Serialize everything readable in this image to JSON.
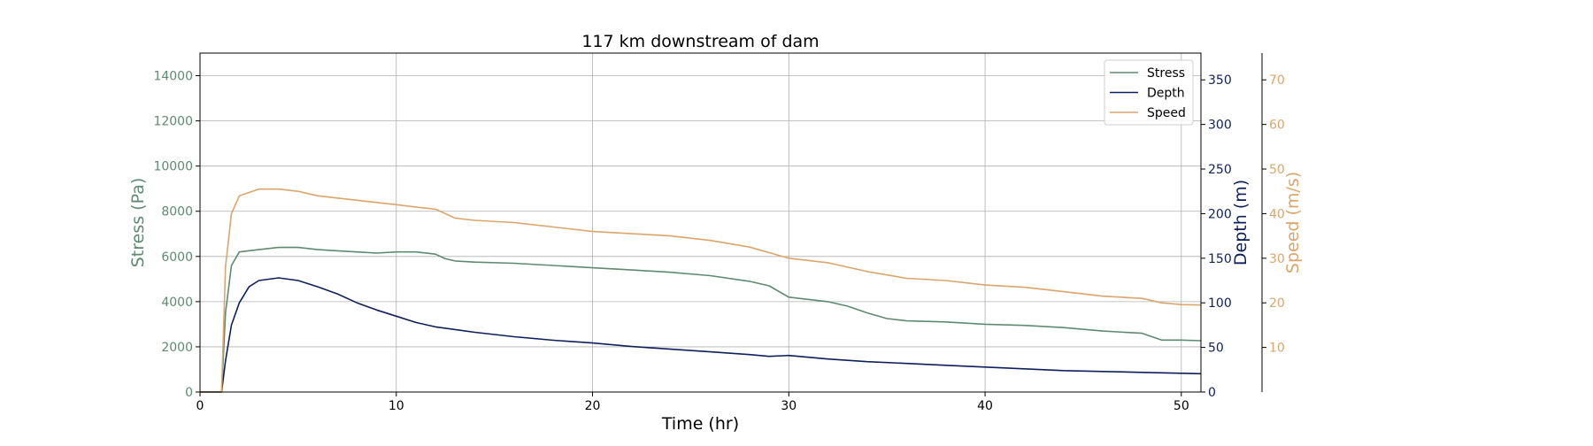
{
  "chart_data": {
    "type": "line",
    "title": "117 km downstream of dam",
    "xlabel": "Time (hr)",
    "xlim": [
      0,
      51
    ],
    "x_ticks": [
      0,
      10,
      20,
      30,
      40,
      50
    ],
    "grid": true,
    "legend_position": "top-right",
    "axes": {
      "stress": {
        "label": "Stress (Pa)",
        "color": "#5e8a72",
        "side": "left",
        "ylim": [
          0,
          15000
        ],
        "ticks": [
          0,
          2000,
          4000,
          6000,
          8000,
          10000,
          12000,
          14000
        ]
      },
      "depth": {
        "label": "Depth (m)",
        "color": "#0e1f5b",
        "side": "right",
        "ylim": [
          0,
          380
        ],
        "ticks": [
          0,
          50,
          100,
          150,
          200,
          250,
          300,
          350
        ]
      },
      "speed": {
        "label": "Speed (m/s)",
        "color": "#dba56b",
        "side": "right-outer",
        "ylim": [
          0,
          76
        ],
        "ticks": [
          10,
          20,
          30,
          40,
          50,
          60,
          70
        ]
      }
    },
    "series": [
      {
        "name": "Stress",
        "axis": "stress",
        "color": "#5e8a72",
        "x": [
          0,
          1.1,
          1.3,
          1.6,
          2,
          3,
          4,
          5,
          6,
          7,
          8,
          9,
          10,
          11,
          12,
          12.5,
          13,
          14,
          16,
          18,
          20,
          22,
          24,
          26,
          28,
          29,
          30,
          32,
          33,
          34,
          35,
          36,
          38,
          40,
          42,
          44,
          46,
          48,
          49,
          50,
          51
        ],
        "y": [
          0,
          0,
          3500,
          5600,
          6200,
          6300,
          6400,
          6400,
          6300,
          6250,
          6200,
          6150,
          6200,
          6200,
          6100,
          5900,
          5800,
          5750,
          5700,
          5600,
          5500,
          5400,
          5300,
          5150,
          4900,
          4700,
          4200,
          4000,
          3800,
          3500,
          3250,
          3150,
          3100,
          3000,
          2950,
          2850,
          2700,
          2600,
          2300,
          2300,
          2270
        ]
      },
      {
        "name": "Depth",
        "axis": "depth",
        "color": "#0e1f5b",
        "x": [
          0,
          1.1,
          1.3,
          1.6,
          2,
          2.5,
          3,
          4,
          5,
          6,
          7,
          8,
          9,
          10,
          11,
          12,
          13,
          14,
          16,
          18,
          20,
          22,
          24,
          26,
          28,
          29,
          30,
          32,
          34,
          36,
          38,
          40,
          42,
          44,
          46,
          48,
          50,
          51
        ],
        "y": [
          0,
          0,
          35,
          75,
          100,
          118,
          125,
          128,
          125,
          118,
          110,
          100,
          92,
          85,
          78,
          73,
          70,
          67,
          62,
          58,
          55,
          51,
          48,
          45,
          42,
          40,
          41,
          37,
          34,
          32,
          30,
          28,
          26,
          24,
          23,
          22,
          21,
          20.5
        ]
      },
      {
        "name": "Speed",
        "axis": "speed",
        "color": "#dba56b",
        "x": [
          0,
          1.1,
          1.3,
          1.6,
          2,
          3,
          4,
          5,
          6,
          7,
          8,
          9,
          10,
          11,
          12,
          13,
          14,
          16,
          18,
          20,
          22,
          24,
          26,
          28,
          30,
          32,
          34,
          36,
          38,
          40,
          42,
          44,
          46,
          48,
          49,
          50,
          51
        ],
        "y": [
          0,
          0,
          28,
          40,
          44,
          45.5,
          45.5,
          45,
          44,
          43.5,
          43,
          42.5,
          42,
          41.5,
          41,
          39,
          38.5,
          38,
          37,
          36,
          35.5,
          35,
          34,
          32.5,
          30,
          29,
          27,
          25.5,
          25,
          24,
          23.5,
          22.5,
          21.5,
          21,
          20,
          19.6,
          19.5
        ]
      }
    ]
  }
}
